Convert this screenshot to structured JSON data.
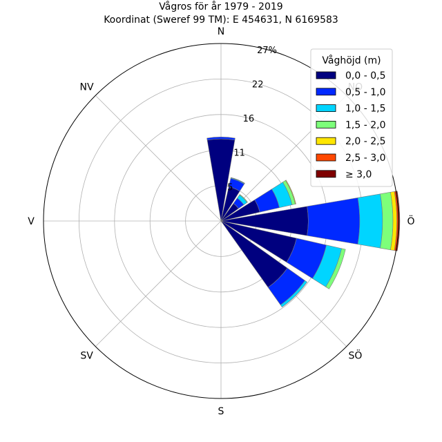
{
  "chart_data": {
    "type": "windrose",
    "title": "Vågros för år 1979 - 2019",
    "subtitle": "Koordinat (Sweref 99 TM): E 454631, N 6169583",
    "direction_labels": [
      "N",
      "NV",
      "V",
      "SV",
      "S",
      "SÖ",
      "Ö",
      "NO"
    ],
    "radial_ticks": [
      "5",
      "11",
      "16",
      "22",
      "27%"
    ],
    "radial_tick_values": [
      5.45,
      10.9,
      16.35,
      21.8,
      27.25
    ],
    "r_max": 27.25,
    "legend": {
      "title": "Våghöjd (m)",
      "position": "upper-right",
      "entries": [
        "0,0 - 0,5",
        "0,5 - 1,0",
        "1,0 - 1,5",
        "1,5 - 2,0",
        "2,0 - 2,5",
        "2,5 - 3,0",
        "≥ 3,0"
      ]
    },
    "colors": [
      "#00007f",
      "#0029ff",
      "#00d5ff",
      "#7dff7a",
      "#ffe600",
      "#ff4800",
      "#7f0000"
    ],
    "sector_width_deg": 22.5,
    "bins": [
      {
        "direction_deg": 0,
        "values": [
          12.6,
          0.3,
          0,
          0,
          0,
          0,
          0
        ]
      },
      {
        "direction_deg": 22.5,
        "values": [
          5.4,
          1.3,
          0.1,
          0.05,
          0,
          0,
          0
        ]
      },
      {
        "direction_deg": 45,
        "values": [
          3.3,
          1.0,
          0.6,
          0.1,
          0,
          0,
          0
        ]
      },
      {
        "direction_deg": 67.5,
        "values": [
          6.1,
          3.1,
          2.0,
          0.5,
          0.1,
          0,
          0
        ]
      },
      {
        "direction_deg": 90,
        "values": [
          13.4,
          7.9,
          3.5,
          1.6,
          0.6,
          0.3,
          0.15
        ]
      },
      {
        "direction_deg": 112.5,
        "values": [
          11.9,
          4.7,
          2.4,
          0.6,
          0,
          0,
          0
        ]
      },
      {
        "direction_deg": 135,
        "values": [
          12.5,
          3.3,
          0.4,
          0,
          0,
          0,
          0
        ]
      },
      {
        "direction_deg": 157.5,
        "values": [
          0,
          0,
          0,
          0,
          0,
          0,
          0
        ]
      },
      {
        "direction_deg": 180,
        "values": [
          0,
          0,
          0,
          0,
          0,
          0,
          0
        ]
      },
      {
        "direction_deg": 202.5,
        "values": [
          0,
          0,
          0,
          0,
          0,
          0,
          0
        ]
      },
      {
        "direction_deg": 225,
        "values": [
          0,
          0,
          0,
          0,
          0,
          0,
          0
        ]
      },
      {
        "direction_deg": 247.5,
        "values": [
          0,
          0,
          0,
          0,
          0,
          0,
          0
        ]
      },
      {
        "direction_deg": 270,
        "values": [
          0,
          0,
          0,
          0,
          0,
          0,
          0
        ]
      },
      {
        "direction_deg": 292.5,
        "values": [
          0,
          0,
          0,
          0,
          0,
          0,
          0
        ]
      },
      {
        "direction_deg": 315,
        "values": [
          0,
          0,
          0,
          0,
          0,
          0,
          0
        ]
      },
      {
        "direction_deg": 337.5,
        "values": [
          0,
          0,
          0,
          0,
          0,
          0,
          0
        ]
      }
    ]
  }
}
